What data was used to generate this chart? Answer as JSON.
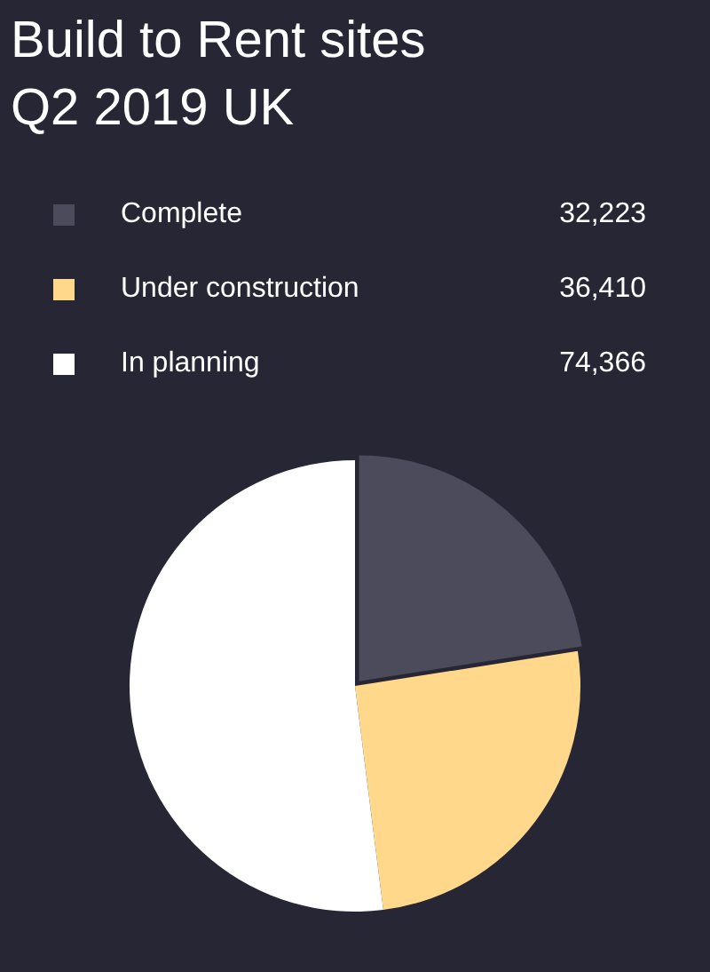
{
  "chart_data": {
    "type": "pie",
    "title": "Build to Rent sites Q2 2019 UK",
    "categories": [
      "Complete",
      "Under construction",
      "In planning"
    ],
    "values": [
      32223,
      36410,
      74366
    ],
    "colors": [
      "#4b4b5c",
      "#ffd88c",
      "#ffffff"
    ],
    "value_labels": [
      "32,223",
      "36,410",
      "74,366"
    ],
    "legend": "top"
  }
}
